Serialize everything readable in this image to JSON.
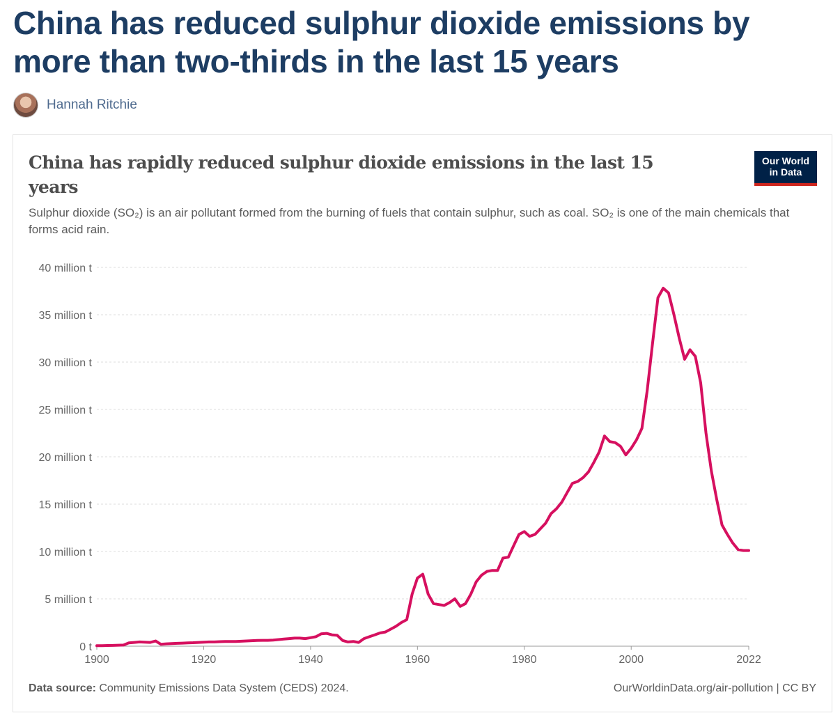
{
  "headline": "China has reduced sulphur dioxide emissions by more than two-thirds in the last 15 years",
  "author": {
    "name": "Hannah Ritchie"
  },
  "logo": {
    "line1": "Our World",
    "line2": "in Data"
  },
  "footer": {
    "source_label": "Data source:",
    "source_text": "Community Emissions Data System (CEDS) 2024.",
    "credit": "OurWorldinData.org/air-pollution | CC BY"
  },
  "colors": {
    "line": "#d6105f",
    "grid": "#dddddd",
    "axis": "#666666"
  },
  "chart_data": {
    "type": "line",
    "title": "China has rapidly reduced sulphur dioxide emissions in the last 15 years",
    "subtitle_html": "Sulphur dioxide (SO₂) is an air pollutant formed from the burning of fuels that contain sulphur, such as coal. SO₂ is one of the main chemicals that forms acid rain.",
    "xlabel": "",
    "ylabel": "",
    "xlim": [
      1900,
      2022
    ],
    "ylim": [
      0,
      40
    ],
    "x_ticks": [
      1900,
      1920,
      1940,
      1960,
      1980,
      2000,
      2022
    ],
    "y_ticks": [
      {
        "value": 0,
        "label": "0 t"
      },
      {
        "value": 5,
        "label": "5 million t"
      },
      {
        "value": 10,
        "label": "10 million t"
      },
      {
        "value": 15,
        "label": "15 million t"
      },
      {
        "value": 20,
        "label": "20 million t"
      },
      {
        "value": 25,
        "label": "25 million t"
      },
      {
        "value": 30,
        "label": "30 million t"
      },
      {
        "value": 35,
        "label": "35 million t"
      },
      {
        "value": 40,
        "label": "40 million t"
      }
    ],
    "series": [
      {
        "name": "China",
        "x": [
          1900,
          1901,
          1902,
          1903,
          1904,
          1905,
          1906,
          1907,
          1908,
          1909,
          1910,
          1911,
          1912,
          1913,
          1914,
          1915,
          1916,
          1917,
          1918,
          1919,
          1920,
          1921,
          1922,
          1923,
          1924,
          1925,
          1926,
          1927,
          1928,
          1929,
          1930,
          1931,
          1932,
          1933,
          1934,
          1935,
          1936,
          1937,
          1938,
          1939,
          1940,
          1941,
          1942,
          1943,
          1944,
          1945,
          1946,
          1947,
          1948,
          1949,
          1950,
          1951,
          1952,
          1953,
          1954,
          1955,
          1956,
          1957,
          1958,
          1959,
          1960,
          1961,
          1962,
          1963,
          1964,
          1965,
          1966,
          1967,
          1968,
          1969,
          1970,
          1971,
          1972,
          1973,
          1974,
          1975,
          1976,
          1977,
          1978,
          1979,
          1980,
          1981,
          1982,
          1983,
          1984,
          1985,
          1986,
          1987,
          1988,
          1989,
          1990,
          1991,
          1992,
          1993,
          1994,
          1995,
          1996,
          1997,
          1998,
          1999,
          2000,
          2001,
          2002,
          2003,
          2004,
          2005,
          2006,
          2007,
          2008,
          2009,
          2010,
          2011,
          2012,
          2013,
          2014,
          2015,
          2016,
          2017,
          2018,
          2019,
          2020,
          2021,
          2022
        ],
        "values": [
          0.05,
          0.06,
          0.07,
          0.08,
          0.1,
          0.12,
          0.35,
          0.4,
          0.45,
          0.42,
          0.4,
          0.55,
          0.2,
          0.25,
          0.28,
          0.3,
          0.32,
          0.35,
          0.37,
          0.4,
          0.42,
          0.45,
          0.45,
          0.48,
          0.5,
          0.5,
          0.5,
          0.52,
          0.55,
          0.58,
          0.6,
          0.62,
          0.62,
          0.65,
          0.7,
          0.75,
          0.8,
          0.85,
          0.85,
          0.8,
          0.9,
          1.0,
          1.3,
          1.35,
          1.2,
          1.15,
          0.6,
          0.45,
          0.5,
          0.4,
          0.8,
          1.0,
          1.2,
          1.4,
          1.5,
          1.8,
          2.1,
          2.5,
          2.8,
          5.5,
          7.2,
          7.6,
          5.5,
          4.5,
          4.4,
          4.3,
          4.6,
          5.0,
          4.2,
          4.5,
          5.5,
          6.8,
          7.5,
          7.9,
          8.0,
          8.0,
          9.3,
          9.4,
          10.6,
          11.8,
          12.1,
          11.6,
          11.8,
          12.4,
          13.0,
          14.0,
          14.5,
          15.2,
          16.2,
          17.2,
          17.4,
          17.8,
          18.4,
          19.4,
          20.5,
          22.2,
          21.6,
          21.5,
          21.1,
          20.2,
          20.9,
          21.8,
          23.0,
          27.0,
          32.0,
          36.8,
          37.8,
          37.3,
          35.0,
          32.5,
          30.3,
          31.3,
          30.6,
          27.8,
          22.5,
          18.5,
          15.5,
          12.8,
          11.8,
          10.9,
          10.2,
          10.1,
          10.1
        ]
      }
    ]
  }
}
